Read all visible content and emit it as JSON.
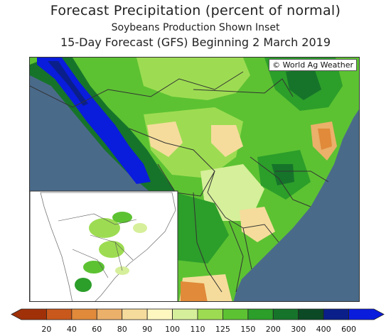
{
  "title": {
    "line1": "Forecast Precipitation (percent of normal)",
    "line2": "Soybeans Production Shown Inset",
    "line3": "15-Day Forecast (GFS) Beginning 2 March 2019"
  },
  "map": {
    "credit": "© World Ag Weather",
    "ocean_color": "#4a6a8a",
    "inset_background": "#ffffff",
    "inset_description": "soybean production areas"
  },
  "legend": {
    "colors": [
      "#a03008",
      "#c8581c",
      "#e08a3a",
      "#ebb06a",
      "#f5dc9c",
      "#fff7c0",
      "#d6ef9a",
      "#9ddc52",
      "#5cc232",
      "#2c9e2a",
      "#16742a",
      "#0c4a26",
      "#0a1f8a",
      "#0a1cdc"
    ],
    "labels": [
      "20",
      "40",
      "60",
      "80",
      "90",
      "100",
      "110",
      "125",
      "150",
      "200",
      "300",
      "400",
      "600"
    ]
  }
}
